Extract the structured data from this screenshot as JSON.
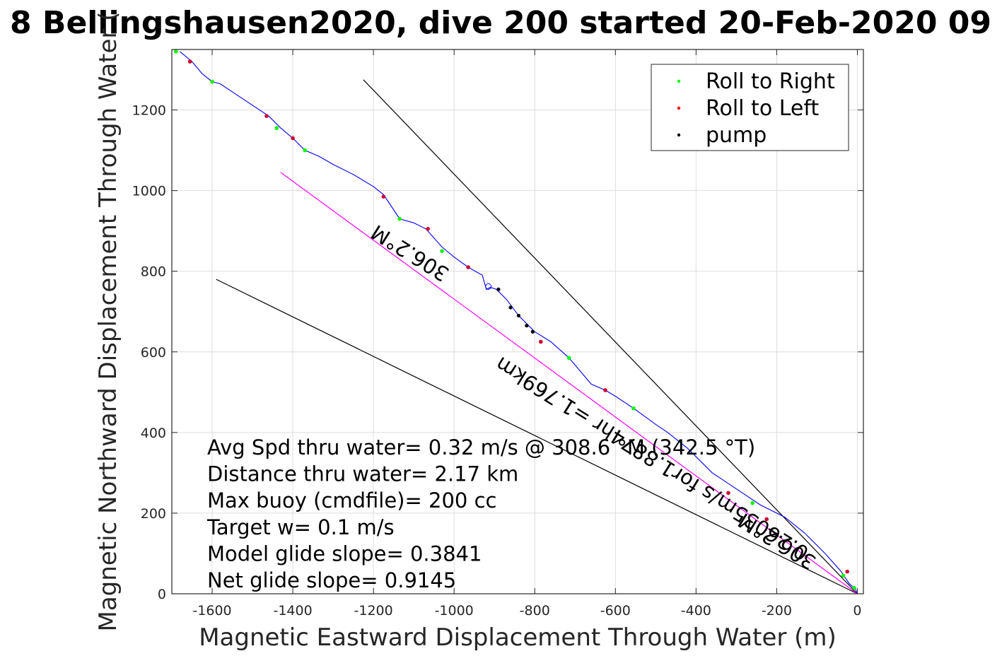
{
  "chart_data": {
    "type": "scatter",
    "title": "8 Bellingshausen2020, dive 200 started 20-Feb-2020 09",
    "xlabel": "Magnetic Eastward Displacement Through Water (m)",
    "ylabel": "Magnetic Northward Displacement Through Water (",
    "xlim": [
      -1700,
      15
    ],
    "ylim": [
      0,
      1350
    ],
    "xticks": [
      -1600,
      -1400,
      -1200,
      -1000,
      -800,
      -600,
      -400,
      -200,
      0
    ],
    "xtick_labels": [
      "-1600",
      "-1400",
      "-1200",
      "-1000",
      "-800",
      "-600",
      "-400",
      "-200",
      "0"
    ],
    "yticks": [
      0,
      200,
      400,
      600,
      800,
      1000,
      1200
    ],
    "ytick_labels": [
      "0",
      "200",
      "400",
      "600",
      "800",
      "1000",
      "1200"
    ],
    "grid": true,
    "legend_position": "top-right",
    "legend": [
      {
        "label": "Roll to Right",
        "color": "#00ff00"
      },
      {
        "label": "Roll to Left",
        "color": "#ff0000"
      },
      {
        "label": "pump",
        "color": "#000000"
      }
    ],
    "track": {
      "color": "#0000ff",
      "points": [
        [
          0,
          0
        ],
        [
          -5,
          12
        ],
        [
          -20,
          25
        ],
        [
          -40,
          55
        ],
        [
          -80,
          100
        ],
        [
          -130,
          150
        ],
        [
          -180,
          190
        ],
        [
          -240,
          220
        ],
        [
          -300,
          260
        ],
        [
          -360,
          300
        ],
        [
          -420,
          360
        ],
        [
          -470,
          400
        ],
        [
          -500,
          420
        ],
        [
          -555,
          460
        ],
        [
          -600,
          490
        ],
        [
          -625,
          505
        ],
        [
          -660,
          520
        ],
        [
          -715,
          585
        ],
        [
          -760,
          625
        ],
        [
          -800,
          650
        ],
        [
          -840,
          690
        ],
        [
          -870,
          730
        ],
        [
          -895,
          755
        ],
        [
          -910,
          760
        ],
        [
          -920,
          755
        ],
        [
          -930,
          790
        ],
        [
          -965,
          810
        ],
        [
          -1000,
          835
        ],
        [
          -1030,
          860
        ],
        [
          -1070,
          905
        ],
        [
          -1100,
          920
        ],
        [
          -1135,
          930
        ],
        [
          -1175,
          990
        ],
        [
          -1200,
          1010
        ],
        [
          -1250,
          1040
        ],
        [
          -1300,
          1065
        ],
        [
          -1335,
          1085
        ],
        [
          -1370,
          1100
        ],
        [
          -1400,
          1130
        ],
        [
          -1430,
          1155
        ],
        [
          -1460,
          1185
        ],
        [
          -1520,
          1225
        ],
        [
          -1580,
          1265
        ],
        [
          -1600,
          1270
        ],
        [
          -1625,
          1290
        ],
        [
          -1650,
          1320
        ],
        [
          -1680,
          1345
        ]
      ]
    },
    "track_end_marker": [
      -915,
      762
    ],
    "roll_right": [
      [
        -8,
        15
      ],
      [
        -35,
        45
      ],
      [
        -260,
        225
      ],
      [
        -555,
        460
      ],
      [
        -715,
        585
      ],
      [
        -1030,
        850
      ],
      [
        -1135,
        930
      ],
      [
        -1370,
        1100
      ],
      [
        -1440,
        1155
      ],
      [
        -1600,
        1270
      ],
      [
        -1690,
        1345
      ]
    ],
    "roll_left": [
      [
        -25,
        55
      ],
      [
        -225,
        185
      ],
      [
        -320,
        250
      ],
      [
        -625,
        505
      ],
      [
        -785,
        625
      ],
      [
        -965,
        810
      ],
      [
        -1065,
        905
      ],
      [
        -1175,
        985
      ],
      [
        -1400,
        1130
      ],
      [
        -1465,
        1185
      ],
      [
        -1655,
        1320
      ]
    ],
    "pump": [
      [
        -890,
        755
      ],
      [
        -860,
        710
      ],
      [
        -840,
        690
      ],
      [
        -820,
        665
      ],
      [
        -805,
        650
      ]
    ],
    "reference_lines": [
      {
        "from": [
          0,
          0
        ],
        "to": [
          -1225,
          1275
        ],
        "color": "#000000"
      },
      {
        "from": [
          0,
          0
        ],
        "to": [
          -1590,
          780
        ],
        "color": "#000000"
      },
      {
        "from": [
          0,
          0
        ],
        "to": [
          -1430,
          1045
        ],
        "color": "#ff00ff"
      }
    ],
    "line_labels": [
      {
        "text": "306.2°M",
        "x": -1100,
        "y": 860,
        "angle_deg": 32
      },
      {
        "text": "0.26035m/s for1.8874hr =1.769km",
        "x": -500,
        "y": 350,
        "angle_deg": 32
      },
      {
        "text": "306.2°M",
        "x": -190,
        "y": 145,
        "angle_deg": 32
      }
    ],
    "annotations": [
      "Avg Spd thru water=  0.32 m/s @ 308.6 °M (342.5 °T)",
      "Distance thru water=  2.17 km",
      "Max buoy (cmdfile)= 200 cc",
      "Target w= 0.1 m/s",
      "Model glide slope= 0.3841",
      "Net glide slope= 0.9145"
    ]
  }
}
